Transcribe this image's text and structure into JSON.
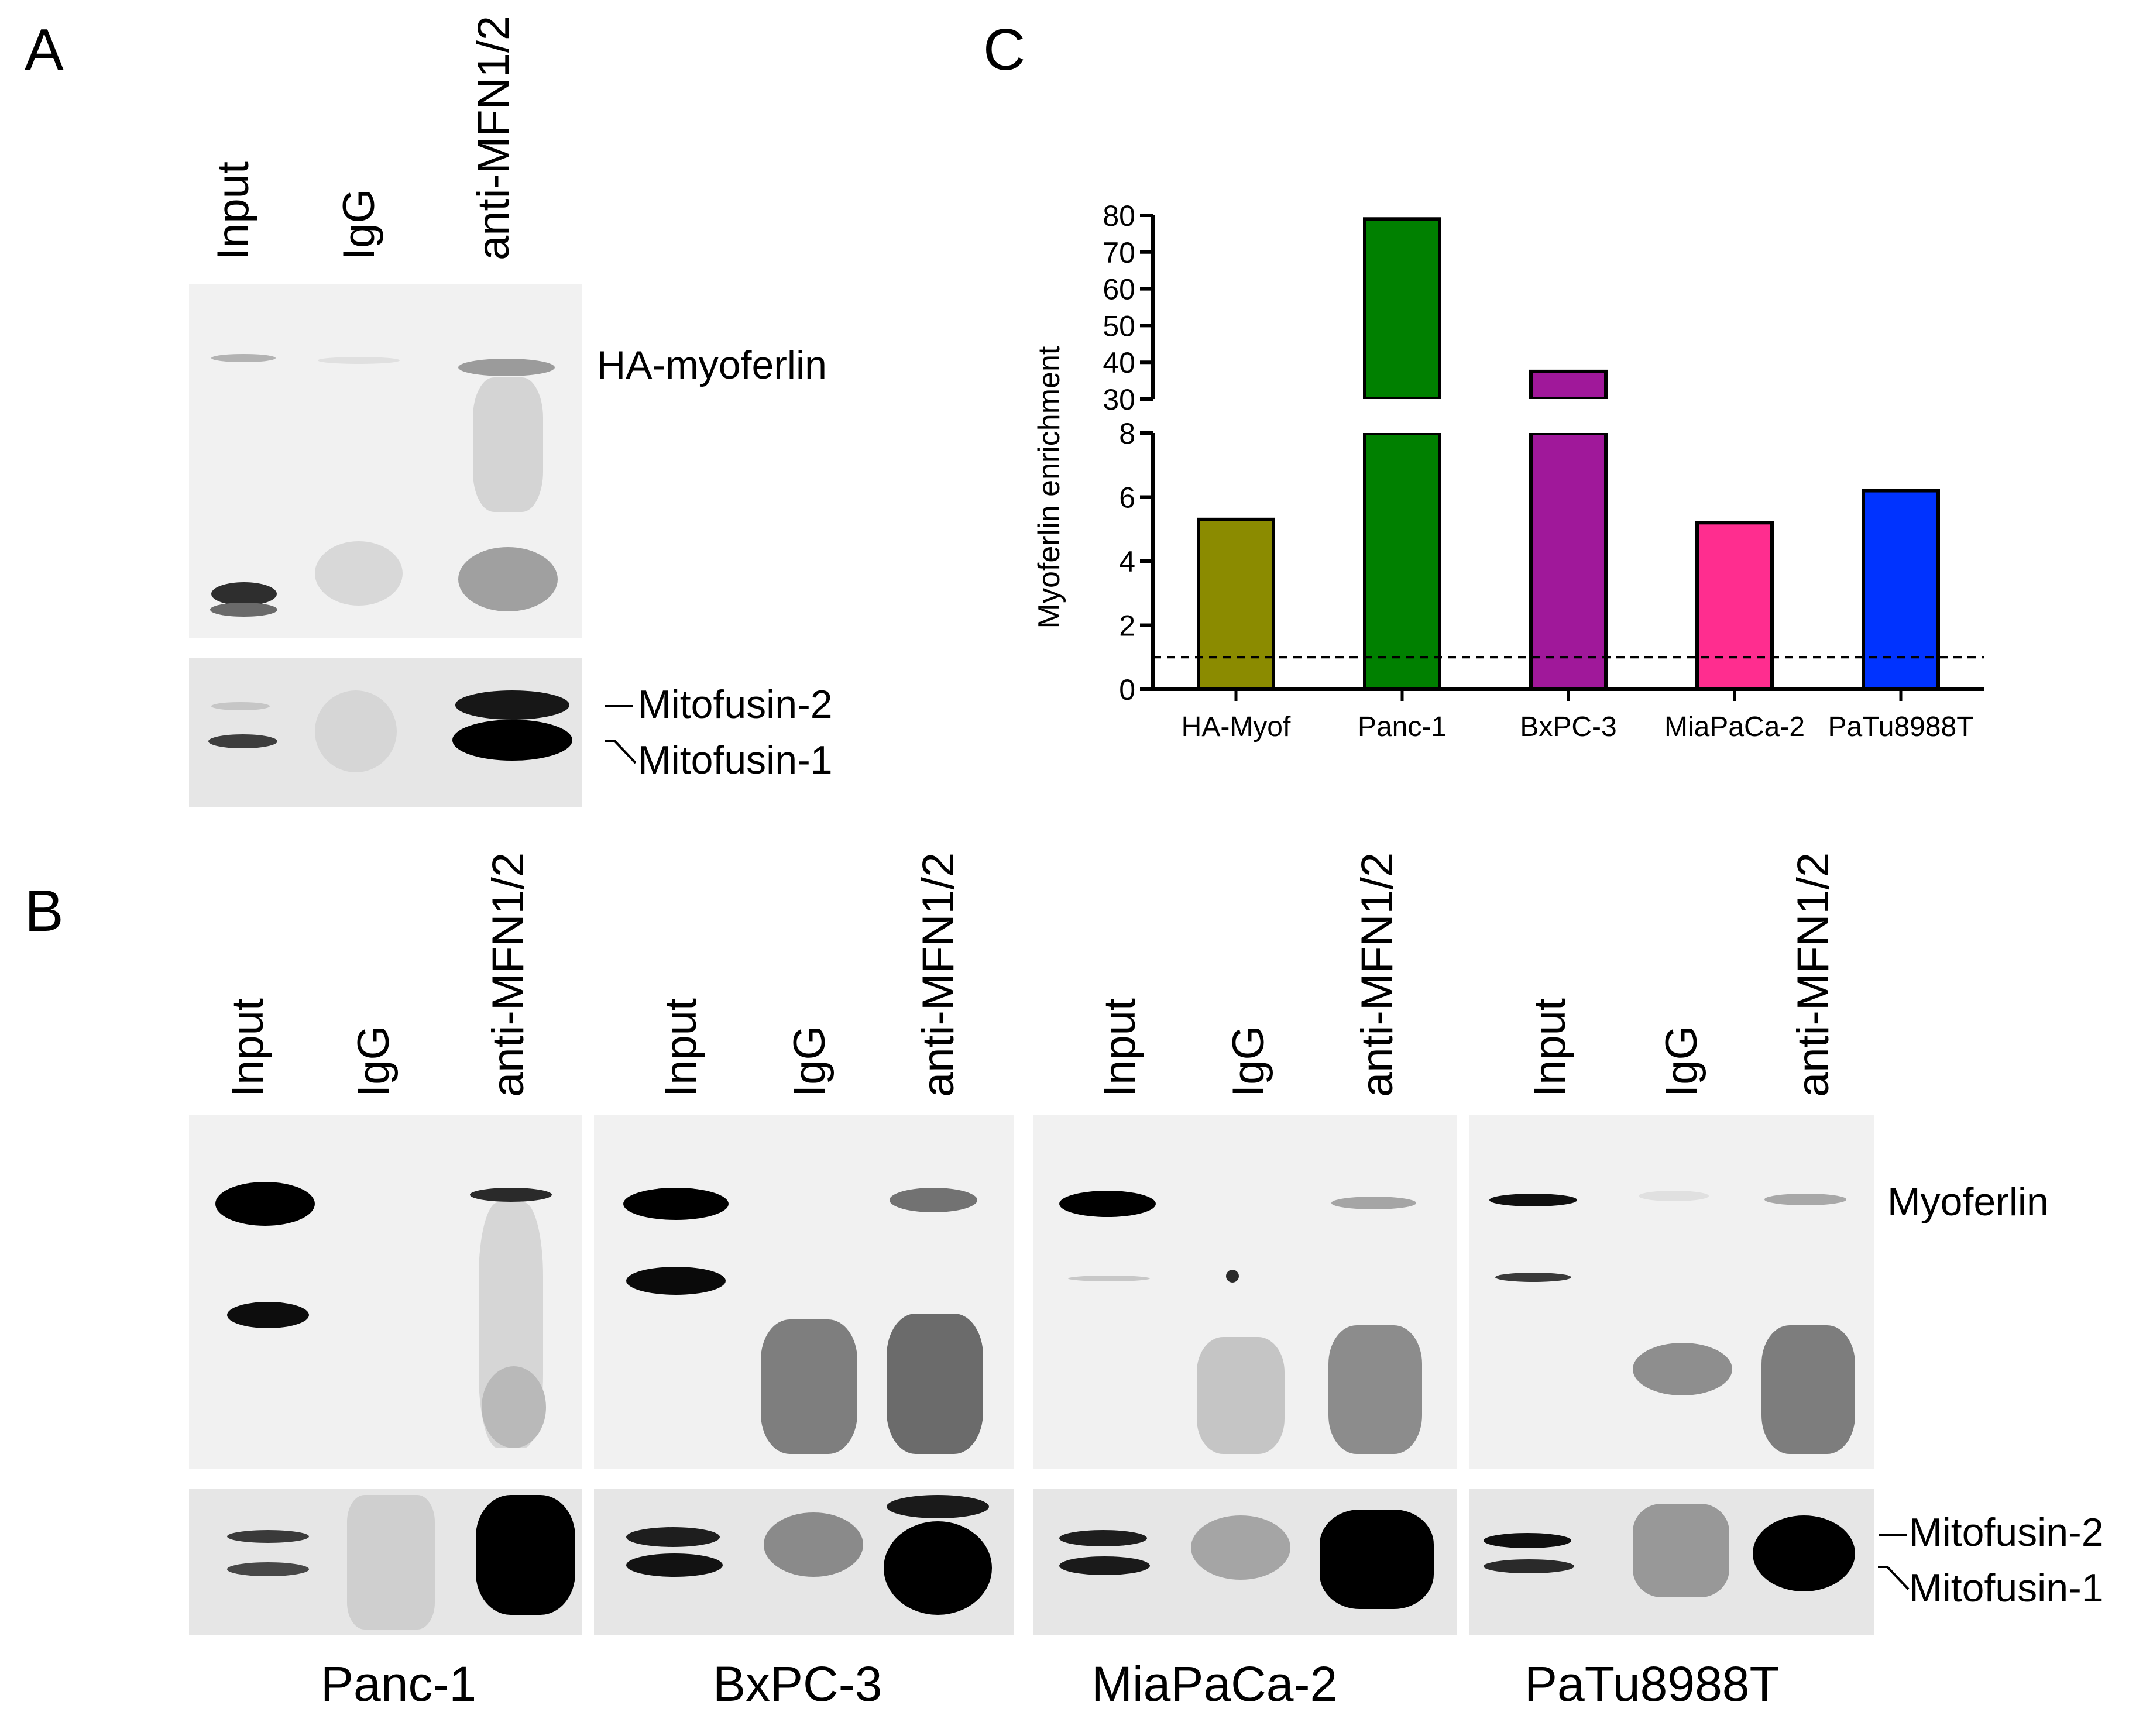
{
  "panels": {
    "a": "A",
    "b": "B",
    "c": "C"
  },
  "lanes": {
    "input": "Input",
    "igg": "IgG",
    "anti": "anti-MFN1/2"
  },
  "panel_a": {
    "ha_myoferlin": "HA-myoferlin",
    "mitofusin2": "Mitofusin-2",
    "mitofusin1": "Mitofusin-1"
  },
  "panel_b": {
    "myoferlin": "Myoferlin",
    "mitofusin2": "Mitofusin-2",
    "mitofusin1": "Mitofusin-1",
    "cell_lines": [
      "Panc-1",
      "BxPC-3",
      "MiaPaCa-2",
      "PaTu8988T"
    ]
  },
  "chart_data": {
    "type": "bar",
    "ylabel": "Myoferlin enrichment",
    "categories": [
      "HA-Myof",
      "Panc-1",
      "BxPC-3",
      "MiaPaCa-2",
      "PaTu8988T"
    ],
    "values": [
      5.3,
      79,
      37.5,
      5.2,
      6.2
    ],
    "colors": [
      "#8b8b00",
      "#008000",
      "#a0189a",
      "#ff2d8f",
      "#0033ff"
    ],
    "y_axis_break": {
      "lower_range": [
        0,
        8
      ],
      "upper_range": [
        30,
        80
      ]
    },
    "lower_ticks": [
      0,
      2,
      4,
      6,
      8
    ],
    "upper_ticks": [
      30,
      40,
      50,
      60,
      70,
      80
    ],
    "reference_line": 1,
    "grid": false
  }
}
